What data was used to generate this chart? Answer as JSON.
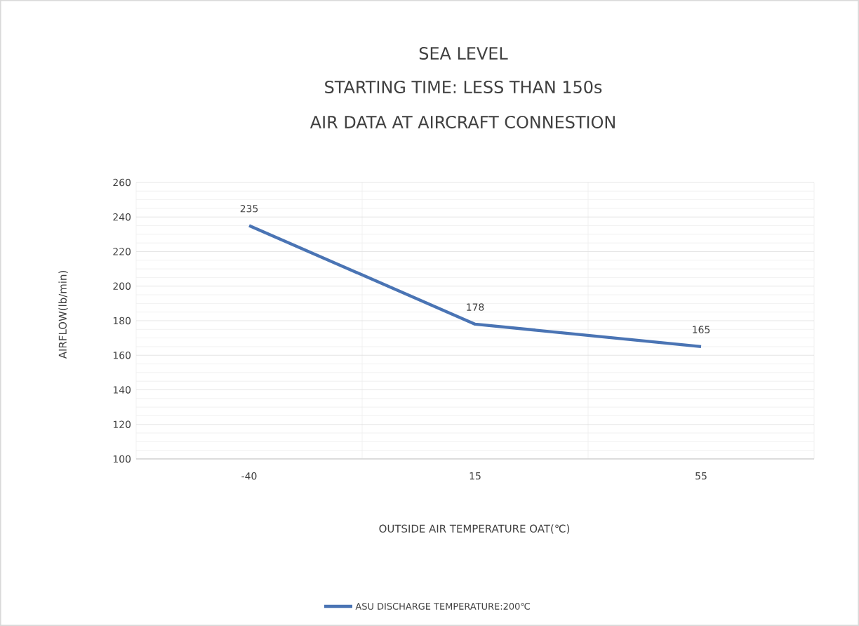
{
  "chart_data": {
    "type": "line",
    "title": "SEA LEVEL",
    "subtitle": "STARTING TIME: LESS THAN 150s",
    "annotations": [
      "AIR DATA AT AIRCRAFT CONNESTION"
    ],
    "xlabel": "OUTSIDE AIR TEMPERATURE   OAT(℃)",
    "ylabel": "AIRFLOW(lb/min)",
    "categories": [
      "-40",
      "15",
      "55"
    ],
    "series": [
      {
        "name": "ASU DISCHARGE TEMPERATURE:200℃",
        "color": "#4a74b4",
        "values": [
          235,
          178,
          165
        ]
      }
    ],
    "ylim": [
      100,
      260
    ],
    "yticks": [
      100,
      120,
      140,
      160,
      180,
      200,
      220,
      240,
      260
    ],
    "grid": true,
    "data_labels": true,
    "legend": "bottom",
    "marker": "none",
    "line_style": "solid"
  }
}
